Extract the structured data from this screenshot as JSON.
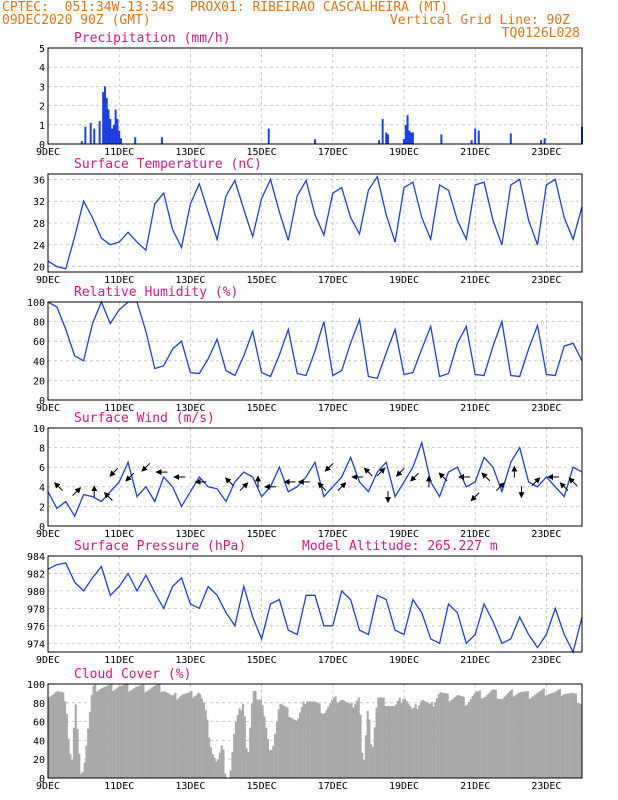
{
  "header": {
    "line1": "CPTEC:  051:34W-13:34S  PROX01: RIBEIRAO CASCALHEIRA (MT)",
    "run": "09DEC2020 90Z (GMT)",
    "vgrid": "Vertical Grid Line: 90Z",
    "code": "TQ0126L028"
  },
  "colors": {
    "title": "#e0168a",
    "header": "#e8741a",
    "series": "#1d3fe0",
    "cloud": "#a9a9a9",
    "arrow": "#000000"
  },
  "x_axis": {
    "start_day": 9,
    "end_day": 24,
    "tick_days": [
      9,
      11,
      13,
      15,
      17,
      19,
      21,
      23
    ],
    "tick_labels": [
      "9DEC",
      "11DEC",
      "13DEC",
      "15DEC",
      "17DEC",
      "19DEC",
      "21DEC",
      "23DEC"
    ]
  },
  "chart_data": [
    {
      "type": "bar",
      "title": "Precipitation (mm/h)",
      "ylim": [
        0,
        5
      ],
      "yticks": [
        0,
        1,
        2,
        3,
        4,
        5
      ],
      "grid": true,
      "x_day": [
        9.95,
        10.05,
        10.2,
        10.3,
        10.45,
        10.55,
        10.6,
        10.65,
        10.7,
        10.75,
        10.8,
        10.85,
        10.9,
        10.95,
        11.0,
        11.05,
        11.45,
        12.2,
        15.2,
        16.5,
        18.3,
        18.4,
        18.5,
        18.55,
        19.0,
        19.05,
        19.1,
        19.15,
        19.2,
        19.25,
        20.05,
        20.9,
        21.0,
        21.1,
        22.0,
        22.85,
        22.95,
        24.0
      ],
      "values": [
        0.15,
        0.9,
        1.1,
        0.8,
        1.2,
        2.7,
        3.0,
        2.4,
        1.8,
        1.3,
        0.8,
        1.0,
        1.8,
        1.3,
        0.7,
        0.3,
        0.35,
        0.35,
        0.8,
        0.25,
        0.2,
        1.3,
        0.6,
        0.5,
        0.25,
        1.0,
        1.5,
        0.7,
        0.6,
        0.6,
        0.5,
        0.2,
        0.8,
        0.7,
        0.55,
        0.2,
        0.3,
        0.9
      ]
    },
    {
      "type": "line",
      "title": "Surface Temperature (nC)",
      "ylim": [
        19,
        37
      ],
      "yticks": [
        20,
        24,
        28,
        32,
        36
      ],
      "grid": true,
      "x_day": [
        9.0,
        9.25,
        9.5,
        9.75,
        10.0,
        10.25,
        10.5,
        10.75,
        11.0,
        11.25,
        11.5,
        11.75,
        12.0,
        12.25,
        12.5,
        12.75,
        13.0,
        13.25,
        13.5,
        13.75,
        14.0,
        14.25,
        14.5,
        14.75,
        15.0,
        15.25,
        15.5,
        15.75,
        16.0,
        16.25,
        16.5,
        16.75,
        17.0,
        17.25,
        17.5,
        17.75,
        18.0,
        18.25,
        18.5,
        18.75,
        19.0,
        19.25,
        19.5,
        19.75,
        20.0,
        20.25,
        20.5,
        20.75,
        21.0,
        21.25,
        21.5,
        21.75,
        22.0,
        22.25,
        22.5,
        22.75,
        23.0,
        23.25,
        23.5,
        23.75,
        24.0
      ],
      "values": [
        21.0,
        20.0,
        19.6,
        25.5,
        32.0,
        29.0,
        25.2,
        24.0,
        24.5,
        26.3,
        24.5,
        23.0,
        31.5,
        33.5,
        26.8,
        23.5,
        31.5,
        35.2,
        30.0,
        25.0,
        33.0,
        35.8,
        30.5,
        25.5,
        32.5,
        36.0,
        30.0,
        24.8,
        33.0,
        35.8,
        29.5,
        25.8,
        33.5,
        34.5,
        29.0,
        26.0,
        34.0,
        36.5,
        29.5,
        24.5,
        34.5,
        35.5,
        29.0,
        25.0,
        35.0,
        34.0,
        28.5,
        25.0,
        35.0,
        35.5,
        28.5,
        24.0,
        35.0,
        36.0,
        28.5,
        24.0,
        35.0,
        36.0,
        29.0,
        25.0,
        31.0
      ]
    },
    {
      "type": "line",
      "title": "Relative Humidity (%)",
      "ylim": [
        0,
        100
      ],
      "yticks": [
        0,
        20,
        40,
        60,
        80,
        100
      ],
      "grid": true,
      "x_day": [
        9.0,
        9.25,
        9.5,
        9.75,
        10.0,
        10.25,
        10.5,
        10.75,
        11.0,
        11.25,
        11.5,
        11.75,
        12.0,
        12.25,
        12.5,
        12.75,
        13.0,
        13.25,
        13.5,
        13.75,
        14.0,
        14.25,
        14.5,
        14.75,
        15.0,
        15.25,
        15.5,
        15.75,
        16.0,
        16.25,
        16.5,
        16.75,
        17.0,
        17.25,
        17.5,
        17.75,
        18.0,
        18.25,
        18.5,
        18.75,
        19.0,
        19.25,
        19.5,
        19.75,
        20.0,
        20.25,
        20.5,
        20.75,
        21.0,
        21.25,
        21.5,
        21.75,
        22.0,
        22.25,
        22.5,
        22.75,
        23.0,
        23.25,
        23.5,
        23.75,
        24.0
      ],
      "values": [
        100,
        95,
        72,
        45,
        40,
        78,
        100,
        78,
        92,
        100,
        100,
        70,
        32,
        35,
        52,
        60,
        28,
        27,
        42,
        62,
        30,
        25,
        45,
        70,
        28,
        24,
        46,
        72,
        27,
        25,
        50,
        80,
        25,
        30,
        58,
        82,
        24,
        22,
        48,
        72,
        26,
        28,
        52,
        75,
        24,
        27,
        58,
        75,
        26,
        25,
        55,
        80,
        25,
        24,
        52,
        76,
        26,
        25,
        55,
        58,
        40
      ]
    },
    {
      "type": "line",
      "title": "Surface Wind (m/s)",
      "ylim": [
        0,
        10
      ],
      "yticks": [
        0,
        2,
        4,
        6,
        8,
        10
      ],
      "grid": true,
      "x_day": [
        9.0,
        9.25,
        9.5,
        9.75,
        10.0,
        10.25,
        10.5,
        10.75,
        11.0,
        11.25,
        11.5,
        11.75,
        12.0,
        12.25,
        12.5,
        12.75,
        13.0,
        13.25,
        13.5,
        13.75,
        14.0,
        14.25,
        14.5,
        14.75,
        15.0,
        15.25,
        15.5,
        15.75,
        16.0,
        16.25,
        16.5,
        16.75,
        17.0,
        17.25,
        17.5,
        17.75,
        18.0,
        18.25,
        18.5,
        18.75,
        19.0,
        19.25,
        19.5,
        19.75,
        20.0,
        20.25,
        20.5,
        20.75,
        21.0,
        21.25,
        21.5,
        21.75,
        22.0,
        22.25,
        22.5,
        22.75,
        23.0,
        23.25,
        23.5,
        23.75,
        24.0
      ],
      "values": [
        3.5,
        1.8,
        2.5,
        1.0,
        3.2,
        3.0,
        2.5,
        3.5,
        4.5,
        6.5,
        3.0,
        4.0,
        2.5,
        5.0,
        4.0,
        2.0,
        3.5,
        5.0,
        4.0,
        3.8,
        2.5,
        4.5,
        5.5,
        5.0,
        3.0,
        4.0,
        6.0,
        3.5,
        4.0,
        5.0,
        6.5,
        3.0,
        4.0,
        5.0,
        7.0,
        4.5,
        3.5,
        5.5,
        6.5,
        3.0,
        4.5,
        6.0,
        8.5,
        4.5,
        3.0,
        5.5,
        6.0,
        4.0,
        4.5,
        7.0,
        6.0,
        3.5,
        6.5,
        8.0,
        4.5,
        4.0,
        5.0,
        4.0,
        3.0,
        6.0,
        5.5
      ]
    },
    {
      "type": "line",
      "title": "Surface Pressure (hPa)",
      "ylim": [
        973,
        984
      ],
      "yticks": [
        974,
        976,
        978,
        980,
        982,
        984
      ],
      "grid": true,
      "x_day": [
        9.0,
        9.25,
        9.5,
        9.75,
        10.0,
        10.25,
        10.5,
        10.75,
        11.0,
        11.25,
        11.5,
        11.75,
        12.0,
        12.25,
        12.5,
        12.75,
        13.0,
        13.25,
        13.5,
        13.75,
        14.0,
        14.25,
        14.5,
        14.75,
        15.0,
        15.25,
        15.5,
        15.75,
        16.0,
        16.25,
        16.5,
        16.75,
        17.0,
        17.25,
        17.5,
        17.75,
        18.0,
        18.25,
        18.5,
        18.75,
        19.0,
        19.25,
        19.5,
        19.75,
        20.0,
        20.25,
        20.5,
        20.75,
        21.0,
        21.25,
        21.5,
        21.75,
        22.0,
        22.25,
        22.5,
        22.75,
        23.0,
        23.25,
        23.5,
        23.75,
        24.0
      ],
      "values": [
        982.5,
        983.0,
        983.2,
        981.0,
        980.0,
        981.5,
        982.8,
        979.5,
        980.5,
        982.0,
        980.0,
        981.8,
        979.8,
        978.0,
        980.5,
        981.5,
        978.5,
        978.0,
        980.5,
        979.5,
        977.5,
        976.0,
        980.5,
        977.0,
        974.5,
        978.5,
        979.0,
        975.5,
        975.0,
        979.5,
        979.5,
        976.0,
        976.0,
        980.0,
        979.0,
        975.5,
        975.0,
        979.5,
        979.0,
        975.5,
        975.0,
        979.0,
        977.5,
        974.5,
        974.0,
        978.5,
        977.5,
        974.0,
        975.0,
        978.5,
        976.5,
        974.0,
        974.5,
        977.0,
        975.0,
        973.5,
        975.0,
        978.0,
        975.0,
        973.0,
        977.0
      ]
    },
    {
      "type": "area",
      "title": "Cloud Cover (%)",
      "ylim": [
        0,
        100
      ],
      "yticks": [
        0,
        20,
        40,
        60,
        80,
        100
      ],
      "grid": true,
      "x_day": [
        9.1,
        9.25,
        9.5,
        9.6,
        9.7,
        9.75,
        9.9,
        10.0,
        10.25,
        10.5,
        10.75,
        11.0,
        11.25,
        11.5,
        11.75,
        12.0,
        12.25,
        12.5,
        12.75,
        13.0,
        13.25,
        13.4,
        13.6,
        13.75,
        13.9,
        14.0,
        14.1,
        14.25,
        14.5,
        14.6,
        14.75,
        15.0,
        15.25,
        15.5,
        15.75,
        16.0,
        16.25,
        16.5,
        16.75,
        17.0,
        17.25,
        17.5,
        17.75,
        17.85,
        18.0,
        18.1,
        18.25,
        18.5,
        18.75,
        19.0,
        19.25,
        19.5,
        19.75,
        20.0,
        20.25,
        20.5,
        20.75,
        21.0,
        21.25,
        21.5,
        21.75,
        22.0,
        22.25,
        22.5,
        22.75,
        23.0,
        23.25,
        23.5,
        23.75,
        24.0
      ],
      "values": [
        90,
        92,
        85,
        30,
        15,
        90,
        8,
        10,
        95,
        97,
        96,
        98,
        96,
        97,
        95,
        97,
        95,
        85,
        90,
        88,
        92,
        75,
        30,
        15,
        35,
        0,
        0,
        55,
        85,
        15,
        90,
        85,
        20,
        80,
        70,
        60,
        85,
        80,
        70,
        82,
        85,
        75,
        88,
        5,
        80,
        25,
        85,
        80,
        75,
        88,
        70,
        85,
        75,
        92,
        85,
        88,
        80,
        90,
        88,
        92,
        85,
        90,
        92,
        88,
        90,
        92,
        90,
        92,
        88,
        80
      ]
    }
  ],
  "altitude": "Model Altitude: 265.227 m",
  "wind_arrows": [
    {
      "day": 9.3,
      "value": 4.0,
      "dir_deg": 315
    },
    {
      "day": 9.8,
      "value": 3.5,
      "dir_deg": 45
    },
    {
      "day": 10.3,
      "value": 3.5,
      "dir_deg": 0
    },
    {
      "day": 10.7,
      "value": 3.0,
      "dir_deg": 315
    },
    {
      "day": 10.85,
      "value": 5.5,
      "dir_deg": 225
    },
    {
      "day": 11.3,
      "value": 5.0,
      "dir_deg": 225
    },
    {
      "day": 11.75,
      "value": 6.0,
      "dir_deg": 225
    },
    {
      "day": 12.2,
      "value": 5.5,
      "dir_deg": 270
    },
    {
      "day": 12.7,
      "value": 5.0,
      "dir_deg": 270
    },
    {
      "day": 13.3,
      "value": 4.5,
      "dir_deg": 270
    },
    {
      "day": 14.1,
      "value": 4.5,
      "dir_deg": 315
    },
    {
      "day": 14.5,
      "value": 4.0,
      "dir_deg": 45
    },
    {
      "day": 14.9,
      "value": 4.5,
      "dir_deg": 0
    },
    {
      "day": 15.25,
      "value": 4.0,
      "dir_deg": 270
    },
    {
      "day": 15.8,
      "value": 4.5,
      "dir_deg": 270
    },
    {
      "day": 16.2,
      "value": 4.5,
      "dir_deg": 270
    },
    {
      "day": 16.7,
      "value": 4.0,
      "dir_deg": 315
    },
    {
      "day": 16.9,
      "value": 6.0,
      "dir_deg": 225
    },
    {
      "day": 17.25,
      "value": 4.0,
      "dir_deg": 45
    },
    {
      "day": 17.7,
      "value": 5.0,
      "dir_deg": 270
    },
    {
      "day": 18.0,
      "value": 5.5,
      "dir_deg": 315
    },
    {
      "day": 18.35,
      "value": 5.5,
      "dir_deg": 45
    },
    {
      "day": 18.55,
      "value": 3.0,
      "dir_deg": 180
    },
    {
      "day": 18.9,
      "value": 5.5,
      "dir_deg": 225
    },
    {
      "day": 19.3,
      "value": 5.0,
      "dir_deg": 225
    },
    {
      "day": 19.7,
      "value": 4.5,
      "dir_deg": 0
    },
    {
      "day": 20.1,
      "value": 5.0,
      "dir_deg": 315
    },
    {
      "day": 20.7,
      "value": 5.0,
      "dir_deg": 270
    },
    {
      "day": 21.0,
      "value": 3.0,
      "dir_deg": 225
    },
    {
      "day": 21.3,
      "value": 5.0,
      "dir_deg": 315
    },
    {
      "day": 21.7,
      "value": 4.0,
      "dir_deg": 45
    },
    {
      "day": 22.1,
      "value": 5.5,
      "dir_deg": 0
    },
    {
      "day": 22.3,
      "value": 3.5,
      "dir_deg": 180
    },
    {
      "day": 22.7,
      "value": 4.5,
      "dir_deg": 45
    },
    {
      "day": 23.2,
      "value": 5.0,
      "dir_deg": 270
    },
    {
      "day": 23.5,
      "value": 4.0,
      "dir_deg": 315
    },
    {
      "day": 23.75,
      "value": 4.5,
      "dir_deg": 315
    }
  ]
}
